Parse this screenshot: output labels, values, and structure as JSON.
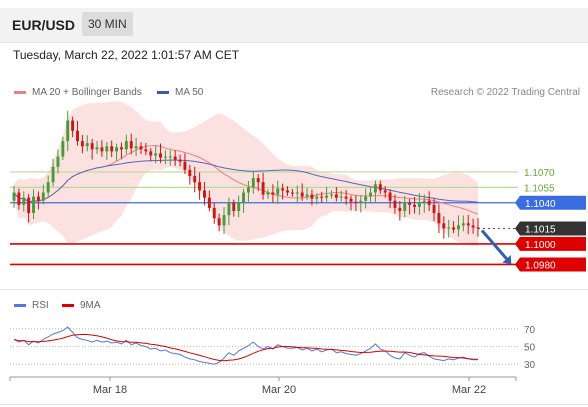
{
  "header": {
    "pair": "EUR/USD",
    "timeframe": "30 MIN"
  },
  "datetime": "Tuesday, March 22, 2022 1:01:57 AM CET",
  "legend": [
    {
      "label": "MA 20 + Bollinger Bands",
      "color": "#f08080"
    },
    {
      "label": "MA 50",
      "color": "#3a5aa8"
    }
  ],
  "credit": "Research © 2022 Trading Central",
  "rsi_legend": [
    {
      "label": "RSI",
      "color": "#5577dd"
    },
    {
      "label": "9MA",
      "color": "#dd0000"
    }
  ],
  "colors": {
    "bull": "#4a9a3a",
    "bear": "#c81818",
    "band_fill": "#fcdcdc",
    "ma20": "#f08080",
    "ma50": "#5566bb",
    "resistance": "#b8dc98",
    "pivot": "#3b6de0",
    "support": "#dd0000",
    "last": "#333333"
  },
  "chart_data": [
    {
      "type": "candlestick",
      "ylim": [
        1.096,
        1.114
      ],
      "time_labels": [
        "Mar 18",
        "Mar 20",
        "Mar 22"
      ],
      "levels": [
        {
          "value": 1.107,
          "label": "1.1070",
          "kind": "resistance"
        },
        {
          "value": 1.1055,
          "label": "1.1055",
          "kind": "resistance"
        },
        {
          "value": 1.104,
          "label": "1.1040",
          "kind": "pivot"
        },
        {
          "value": 1.1015,
          "label": "1.1015",
          "kind": "last"
        },
        {
          "value": 1.1,
          "label": "1.1000",
          "kind": "support"
        },
        {
          "value": 1.098,
          "label": "1.0980",
          "kind": "support"
        }
      ],
      "close": [
        1.105,
        1.1038,
        1.1045,
        1.103,
        1.1046,
        1.1042,
        1.105,
        1.106,
        1.1075,
        1.1085,
        1.11,
        1.112,
        1.111,
        1.11,
        1.1095,
        1.1098,
        1.1092,
        1.1094,
        1.109,
        1.1095,
        1.109,
        1.1094,
        1.1092,
        1.11,
        1.1093,
        1.1095,
        1.1092,
        1.109,
        1.1086,
        1.1088,
        1.1084,
        1.1085,
        1.1085,
        1.1082,
        1.108,
        1.1072,
        1.1066,
        1.106,
        1.1052,
        1.1045,
        1.1035,
        1.1025,
        1.1018,
        1.1028,
        1.104,
        1.1032,
        1.104,
        1.105,
        1.1055,
        1.1064,
        1.106,
        1.1048,
        1.105,
        1.1048,
        1.1054,
        1.1052,
        1.105,
        1.1049,
        1.105,
        1.1046,
        1.1048,
        1.1044,
        1.1046,
        1.1045,
        1.1047,
        1.1048,
        1.1045,
        1.1046,
        1.1044,
        1.1041,
        1.104,
        1.1042,
        1.1046,
        1.105,
        1.1058,
        1.1052,
        1.105,
        1.1042,
        1.1035,
        1.1032,
        1.104,
        1.1038,
        1.1036,
        1.104,
        1.1042,
        1.1038,
        1.103,
        1.102,
        1.1015,
        1.1016,
        1.1014,
        1.1018,
        1.102,
        1.1018,
        1.1016,
        1.1015
      ],
      "rsi": [
        58,
        55,
        57,
        52,
        56,
        54,
        58,
        61,
        64,
        66,
        68,
        72,
        66,
        60,
        58,
        57,
        55,
        57,
        55,
        56,
        54,
        55,
        53,
        57,
        52,
        54,
        51,
        50,
        47,
        48,
        45,
        46,
        43,
        42,
        41,
        38,
        36,
        35,
        33,
        32,
        31,
        30,
        32,
        37,
        43,
        40,
        45,
        48,
        51,
        55,
        50,
        47,
        50,
        47,
        52,
        50,
        48,
        48,
        49,
        46,
        48,
        45,
        47,
        44,
        46,
        47,
        43,
        44,
        42,
        41,
        40,
        42,
        45,
        48,
        53,
        47,
        45,
        40,
        37,
        36,
        43,
        40,
        38,
        42,
        43,
        39,
        36,
        35,
        34,
        36,
        35,
        37,
        38,
        36,
        35,
        35
      ],
      "rsi_levels": [
        70,
        50,
        30
      ]
    }
  ]
}
